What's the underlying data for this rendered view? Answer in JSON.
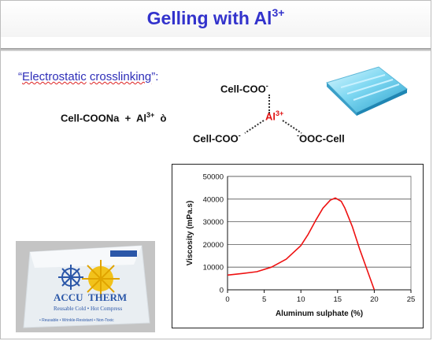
{
  "slide": {
    "title": "Gelling with Al",
    "title_sup": "3+",
    "bullet_open": "“",
    "bullet_word1": "Electrostatic",
    "bullet_space": " ",
    "bullet_word2": "crosslinking",
    "bullet_close": "”:"
  },
  "reaction": {
    "reactant1": "Cell-COONa",
    "plus": "+",
    "al": "Al",
    "al_charge": "3+",
    "arrow": "ò"
  },
  "complex": {
    "top": "Cell-COO",
    "top_charge": "-",
    "center": "Al",
    "center_charge": "3+",
    "left": "Cell-COO",
    "left_charge": "-",
    "right_charge": "-",
    "right": "OOC-Cell"
  },
  "photo": {
    "brand_line1": "ACCU",
    "brand_line2": "THERM",
    "line1": "Reusable Cold • Hot Compress",
    "line2": "• Reusable • Wrinkle-Resistant • Non-Toxic"
  },
  "colors": {
    "title": "#3333cc",
    "bullet": "#2e2eb8",
    "al": "#e01010",
    "curve": "#ee1111"
  },
  "chart_data": {
    "type": "line",
    "title": "",
    "xlabel": "Aluminum sulphate (%)",
    "ylabel": "Viscosity (mPa.s)",
    "xlim": [
      0,
      25
    ],
    "ylim": [
      0,
      50000
    ],
    "xticks": [
      "0",
      "5",
      "10",
      "15",
      "20",
      "25"
    ],
    "yticks": [
      "0",
      "10000",
      "20000",
      "30000",
      "40000",
      "50000"
    ],
    "grid": true,
    "legend": "none",
    "series": [
      {
        "x": [
          0,
          2,
          4,
          6,
          8,
          10,
          11,
          12,
          13,
          14,
          14.7,
          15.5,
          16,
          17,
          18,
          19,
          20
        ],
        "y": [
          6500,
          7200,
          8000,
          10000,
          13500,
          19500,
          24500,
          30500,
          36000,
          39500,
          40500,
          39000,
          36000,
          28000,
          18000,
          9000,
          0
        ]
      }
    ]
  }
}
